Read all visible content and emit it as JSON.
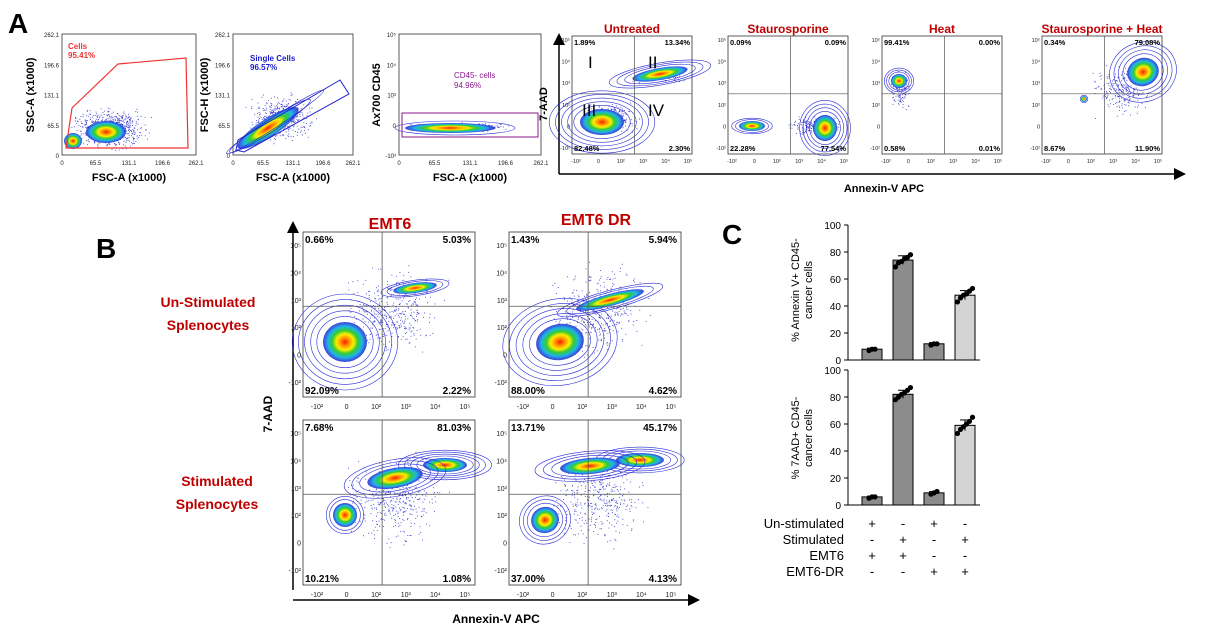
{
  "panel_letters": [
    "A",
    "B",
    "C"
  ],
  "colors": {
    "red_label": "#c00000",
    "blue_label": "#1a1acc",
    "purple_label": "#8b1a8b",
    "gate_red": "#ee3333",
    "gate_blue": "#2222cc",
    "bar_dark": "#8c8c8c",
    "bar_light": "#d4d4d4"
  },
  "panel_a": {
    "gating": [
      {
        "ylabel": "SSC-A (x1000)",
        "xlabel": "FSC-A (x1000)",
        "gate_name": "Cells",
        "gate_pct": "95.41%",
        "xticks": [
          "0",
          "65.5",
          "131.1",
          "196.6",
          "262.1"
        ],
        "yticks": [
          "262.1",
          "196.6",
          "131.1",
          "65.5",
          "0"
        ]
      },
      {
        "ylabel": "FSC-H (x1000)",
        "xlabel": "FSC-A (x1000)",
        "gate_name": "Single Cells",
        "gate_pct": "96.57%",
        "xticks": [
          "0",
          "65.5",
          "131.1",
          "196.6",
          "262.1"
        ],
        "yticks": [
          "262.1",
          "196.6",
          "131.1",
          "65.5",
          "0"
        ]
      },
      {
        "ylabel": "Ax700 CD45",
        "xlabel": "FSC-A (x1000)",
        "gate_name": "CD45- cells",
        "gate_pct": "94.96%",
        "xticks": [
          "0",
          "65.5",
          "131.1",
          "196.6",
          "262.1"
        ],
        "yticks": [
          "10⁵",
          "10⁴",
          "10³",
          "0",
          "-10³"
        ]
      }
    ],
    "controls": {
      "ylabel": "7-AAD",
      "xlabel": "Annexin-V APC",
      "quadrant_labels": [
        "I",
        "II",
        "III",
        "IV"
      ],
      "xticks": [
        "-10²",
        "0",
        "10²",
        "10³",
        "10⁴",
        "10⁵"
      ],
      "yticks": [
        "10⁵",
        "10⁴",
        "10³",
        "10²",
        "0",
        "-10²"
      ],
      "plots": [
        {
          "title": "Untreated",
          "ul": "1.89%",
          "ur": "13.34%",
          "ll": "82.48%",
          "lr": "2.30%"
        },
        {
          "title": "Staurosporine",
          "ul": "0.09%",
          "ur": "0.09%",
          "ll": "22.28%",
          "lr": "77.54%"
        },
        {
          "title": "Heat",
          "ul": "99.41%",
          "ur": "0.00%",
          "ll": "0.58%",
          "lr": "0.01%"
        },
        {
          "title": "Staurosporine + Heat",
          "ul": "0.34%",
          "ur": "79.08%",
          "ll": "8.67%",
          "lr": "11.90%"
        }
      ]
    }
  },
  "panel_b": {
    "columns": [
      "EMT6",
      "EMT6 DR"
    ],
    "rows": [
      "Un-Stimulated Splenocytes",
      "Stimulated Splenocytes"
    ],
    "row_lines": [
      [
        "Un-Stimulated",
        "Splenocytes"
      ],
      [
        "Stimulated",
        "Splenocytes"
      ]
    ],
    "ylabel": "7-AAD",
    "xlabel": "Annexin-V APC",
    "xticks": [
      "-10²",
      "0",
      "10²",
      "10³",
      "10⁴",
      "10⁵"
    ],
    "yticks": [
      "10⁵",
      "10⁴",
      "10³",
      "10²",
      "0",
      "-10²"
    ],
    "plots": [
      {
        "ul": "0.66%",
        "ur": "5.03%",
        "ll": "92.09%",
        "lr": "2.22%"
      },
      {
        "ul": "1.43%",
        "ur": "5.94%",
        "ll": "88.00%",
        "lr": "4.62%"
      },
      {
        "ul": "7.68%",
        "ur": "81.03%",
        "ll": "10.21%",
        "lr": "1.08%"
      },
      {
        "ul": "13.71%",
        "ur": "45.17%",
        "ll": "37.00%",
        "lr": "4.13%"
      }
    ]
  },
  "chart_data": [
    {
      "type": "bar",
      "ylabel": "% Annexin V+ CD45- cancer cells",
      "ylabel_lines": [
        "% Annexin V+ CD45-",
        "cancer cells"
      ],
      "ylim": [
        0,
        100
      ],
      "yticks": [
        0,
        20,
        40,
        60,
        80,
        100
      ],
      "values": [
        8,
        74,
        12,
        48
      ],
      "points": [
        [
          7,
          8,
          8
        ],
        [
          69,
          72,
          73,
          75,
          76,
          78
        ],
        [
          11,
          12,
          12
        ],
        [
          43,
          46,
          48,
          49,
          51,
          53
        ]
      ],
      "errors": [
        0.8,
        3.2,
        0.9,
        3.4
      ]
    },
    {
      "type": "bar",
      "ylabel": "% 7AAD+ CD45- cancer cells",
      "ylabel_lines": [
        "% 7AAD+ CD45-",
        "cancer cells"
      ],
      "ylim": [
        0,
        100
      ],
      "yticks": [
        0,
        20,
        40,
        60,
        80,
        100
      ],
      "values": [
        6,
        82,
        9,
        59
      ],
      "points": [
        [
          5,
          6,
          6
        ],
        [
          78,
          80,
          82,
          83,
          85,
          87
        ],
        [
          8,
          9,
          10
        ],
        [
          53,
          56,
          58,
          60,
          62,
          65
        ]
      ],
      "errors": [
        0.6,
        3.0,
        0.9,
        4.0
      ]
    }
  ],
  "conditions": [
    {
      "label": "Un-stimulated",
      "signs": [
        "+",
        "-",
        "+",
        "-"
      ]
    },
    {
      "label": "Stimulated",
      "signs": [
        "-",
        "+",
        "-",
        "+"
      ]
    },
    {
      "label": "EMT6",
      "signs": [
        "+",
        "+",
        "-",
        "-"
      ]
    },
    {
      "label": "EMT6-DR",
      "signs": [
        "-",
        "-",
        "+",
        "+"
      ]
    }
  ]
}
